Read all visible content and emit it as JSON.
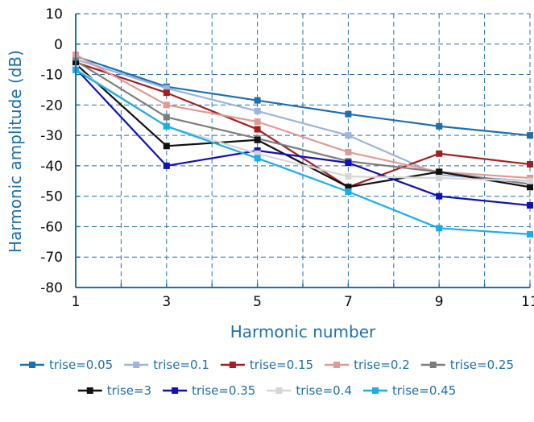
{
  "chart_data": {
    "type": "line",
    "title": "",
    "xlabel": "Harmonic number",
    "ylabel": "Harmonic amplitude (dB)",
    "x": [
      1,
      3,
      5,
      7,
      9,
      11
    ],
    "xlim": [
      1,
      11
    ],
    "ylim": [
      -80,
      10
    ],
    "xticks": [
      1,
      3,
      5,
      7,
      9,
      11
    ],
    "yticks": [
      10,
      0,
      -10,
      -20,
      -30,
      -40,
      -50,
      -60,
      -70,
      -80
    ],
    "grid": true,
    "legend_position": "bottom",
    "series": [
      {
        "name": "trise=0.05",
        "color": "#1f6fae",
        "values": [
          -4,
          -14,
          -18.5,
          -23,
          -27,
          -30
        ]
      },
      {
        "name": "trise=0.1",
        "color": "#9bb5dc",
        "values": [
          -5,
          -14.5,
          -22,
          -30,
          -43,
          -45
        ]
      },
      {
        "name": "trise=0.15",
        "color": "#a32020",
        "values": [
          -6,
          -16,
          -28,
          -47,
          -36,
          -39.5
        ]
      },
      {
        "name": "trise=0.2",
        "color": "#e09a95",
        "values": [
          -3.5,
          -20,
          -25.5,
          -35.5,
          -42,
          -44
        ]
      },
      {
        "name": "trise=0.25",
        "color": "#7d7d7d",
        "values": [
          -5.5,
          -24,
          -31,
          -38.5,
          -42,
          -46
        ]
      },
      {
        "name": "trise=3",
        "color": "#111111",
        "values": [
          -6.5,
          -33.5,
          -31.5,
          -47,
          -42,
          -47
        ]
      },
      {
        "name": "trise=0.35",
        "color": "#1010b8",
        "values": [
          -8,
          -40,
          -35,
          -39,
          -50,
          -53
        ]
      },
      {
        "name": "trise=0.4",
        "color": "#d6d6d6",
        "values": [
          -8,
          -27,
          -36,
          -43.5,
          -44,
          -45
        ]
      },
      {
        "name": "trise=0.45",
        "color": "#1aaee8",
        "values": [
          -8.5,
          -27,
          -37.5,
          -48.5,
          -60.5,
          -62.5
        ]
      }
    ]
  }
}
